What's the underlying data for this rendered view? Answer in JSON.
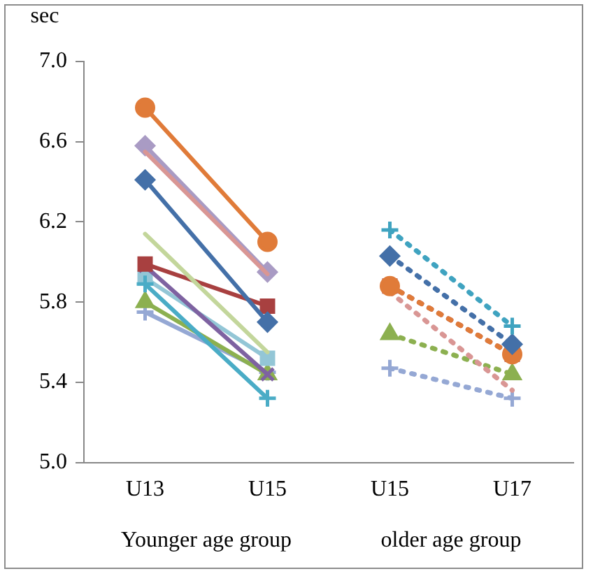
{
  "chart_data": {
    "type": "line",
    "ylabel": "sec",
    "categories": [
      "U13",
      "U15",
      "U15",
      "U17"
    ],
    "ylim": [
      5.0,
      7.0
    ],
    "yticks": [
      {
        "value": 5,
        "label": "5.0"
      },
      {
        "value": 5.4,
        "label": "5.4"
      },
      {
        "value": 5.8,
        "label": "5.8"
      },
      {
        "value": 6.2,
        "label": "6.2"
      },
      {
        "value": 6.6,
        "label": "6.6"
      },
      {
        "value": 7,
        "label": "7.0"
      }
    ],
    "grid": false,
    "legend": false,
    "annotations": [
      "Younger age group",
      "older age group"
    ],
    "series": [
      {
        "color": "#e07b39",
        "marker": "circle",
        "line_style": "solid",
        "values": [
          6.77,
          6.1,
          null,
          null
        ]
      },
      {
        "color": "#d99694",
        "marker": "none",
        "line_style": "solid",
        "values": [
          6.55,
          5.94,
          null,
          null
        ]
      },
      {
        "color": "#a99bc4",
        "marker": "diamond",
        "line_style": "solid",
        "values": [
          6.58,
          5.95,
          null,
          null
        ]
      },
      {
        "color": "#4470a8",
        "marker": "diamond",
        "line_style": "solid",
        "values": [
          6.41,
          5.7,
          null,
          null
        ]
      },
      {
        "color": "#c3d69b",
        "marker": "none",
        "line_style": "solid",
        "values": [
          6.14,
          5.55,
          null,
          null
        ]
      },
      {
        "color": "#a84040",
        "marker": "square",
        "line_style": "solid",
        "values": [
          5.99,
          5.78,
          null,
          null
        ]
      },
      {
        "color": "#7e62a1",
        "marker": "x",
        "line_style": "solid",
        "values": [
          5.98,
          5.44,
          null,
          null
        ]
      },
      {
        "color": "#4aacc6",
        "marker": "cross",
        "line_style": "solid",
        "values": [
          5.89,
          5.32,
          null,
          null
        ]
      },
      {
        "color": "#93c6d6",
        "marker": "square",
        "line_style": "solid",
        "values": [
          5.92,
          5.52,
          null,
          null
        ]
      },
      {
        "color": "#8cb050",
        "marker": "triangle",
        "line_style": "solid",
        "values": [
          5.8,
          5.44,
          null,
          null
        ]
      },
      {
        "color": "#95a8d4",
        "marker": "cross",
        "line_style": "solid",
        "values": [
          5.75,
          5.45,
          null,
          null
        ]
      },
      {
        "color": "#3fa3c0",
        "marker": "cross",
        "line_style": "dotted",
        "values": [
          null,
          null,
          6.16,
          5.68
        ]
      },
      {
        "color": "#4470a8",
        "marker": "diamond",
        "line_style": "dotted",
        "values": [
          null,
          null,
          6.03,
          5.59
        ]
      },
      {
        "color": "#e07b39",
        "marker": "circle",
        "line_style": "dotted",
        "values": [
          null,
          null,
          5.88,
          5.54
        ]
      },
      {
        "color": "#a84040",
        "marker": "square",
        "line_style": "dotted",
        "values": [
          null,
          null,
          5.88,
          5.54
        ]
      },
      {
        "color": "#d99694",
        "marker": "none",
        "line_style": "dotted",
        "values": [
          null,
          null,
          5.85,
          5.36
        ]
      },
      {
        "color": "#8cb050",
        "marker": "triangle",
        "line_style": "dotted",
        "values": [
          null,
          null,
          5.64,
          5.44
        ]
      },
      {
        "color": "#95a8d4",
        "marker": "cross",
        "line_style": "dotted",
        "values": [
          null,
          null,
          5.47,
          5.32
        ]
      }
    ]
  }
}
